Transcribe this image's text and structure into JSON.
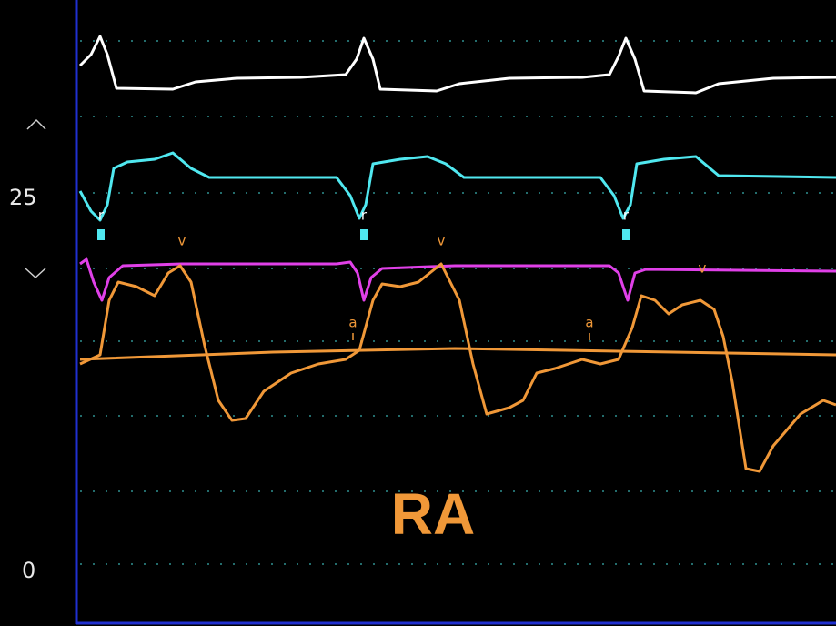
{
  "scale": {
    "high": "25",
    "low": "0"
  },
  "label": "RA",
  "markers": {
    "r": [
      "r",
      "r",
      "r"
    ],
    "v": [
      "v",
      "v",
      "v"
    ],
    "a": [
      "a",
      "a"
    ]
  }
}
